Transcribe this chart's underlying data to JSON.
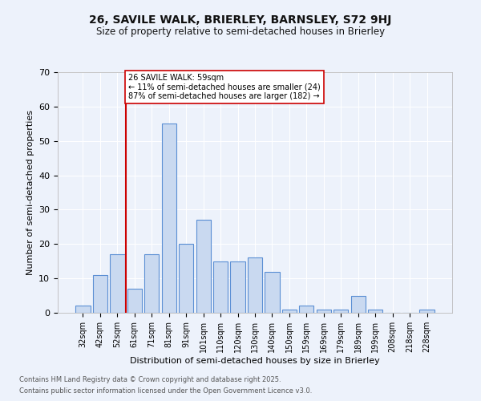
{
  "title1": "26, SAVILE WALK, BRIERLEY, BARNSLEY, S72 9HJ",
  "title2": "Size of property relative to semi-detached houses in Brierley",
  "xlabel": "Distribution of semi-detached houses by size in Brierley",
  "ylabel": "Number of semi-detached properties",
  "categories": [
    "32sqm",
    "42sqm",
    "52sqm",
    "61sqm",
    "71sqm",
    "81sqm",
    "91sqm",
    "101sqm",
    "110sqm",
    "120sqm",
    "130sqm",
    "140sqm",
    "150sqm",
    "159sqm",
    "169sqm",
    "179sqm",
    "189sqm",
    "199sqm",
    "208sqm",
    "218sqm",
    "228sqm"
  ],
  "values": [
    2,
    11,
    17,
    7,
    17,
    55,
    20,
    27,
    15,
    15,
    16,
    12,
    1,
    2,
    1,
    1,
    5,
    1,
    0,
    0,
    1
  ],
  "bar_color": "#c9d9f0",
  "bar_edge_color": "#5b8fd4",
  "vline_color": "#cc0000",
  "annotation_text": "26 SAVILE WALK: 59sqm\n← 11% of semi-detached houses are smaller (24)\n87% of semi-detached houses are larger (182) →",
  "annotation_box_color": "#cc0000",
  "ylim": [
    0,
    70
  ],
  "yticks": [
    0,
    10,
    20,
    30,
    40,
    50,
    60,
    70
  ],
  "footer1": "Contains HM Land Registry data © Crown copyright and database right 2025.",
  "footer2": "Contains public sector information licensed under the Open Government Licence v3.0.",
  "bg_color": "#edf2fb",
  "plot_bg_color": "#edf2fb",
  "vline_xindex": 2.5
}
